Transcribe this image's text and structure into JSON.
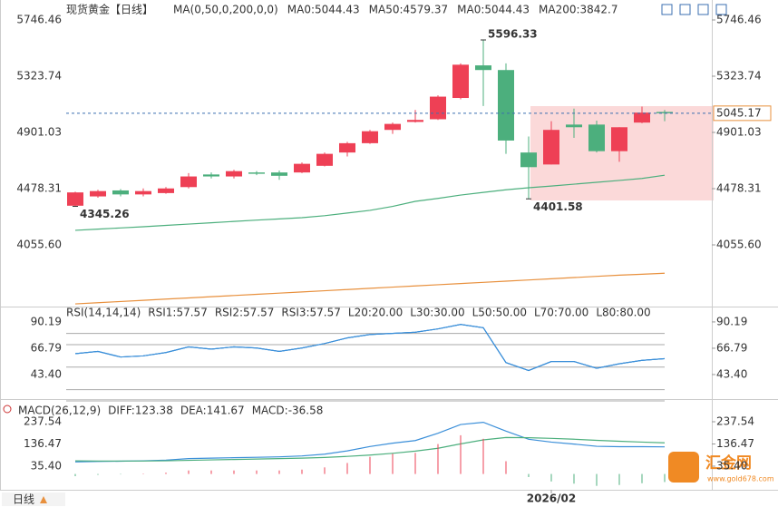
{
  "chart_data": [
    {
      "type": "candlestick",
      "title": "现货黄金",
      "period": "【日线】",
      "period_color": "#e8903d",
      "indicator": "MA(0,50,0,200,0,0)",
      "categories": [
        null,
        null,
        null,
        null,
        null,
        null,
        null,
        null,
        null,
        null,
        null,
        null,
        null,
        null,
        null,
        null,
        null,
        null,
        null,
        null,
        null,
        "2026/02",
        null,
        null,
        null,
        null,
        null
      ],
      "open": [
        4350,
        4420,
        4465,
        4435,
        4445,
        4490,
        4585,
        4570,
        4600,
        4600,
        4600,
        4650,
        4750,
        4820,
        4920,
        4980,
        5000,
        5160,
        5405,
        5370,
        4750,
        4660,
        4960,
        4960,
        4760,
        4975,
        5055
      ],
      "high": [
        4455,
        4470,
        4475,
        4480,
        4490,
        4595,
        4600,
        4620,
        4610,
        4615,
        4675,
        4750,
        4830,
        4920,
        4975,
        5070,
        5180,
        5420,
        5596.33,
        5420,
        4870,
        4985,
        5080,
        4990,
        4940,
        5095,
        5070
      ],
      "low": [
        4345.26,
        4410,
        4420,
        4420,
        4440,
        4480,
        4555,
        4555,
        4580,
        4545,
        4595,
        4645,
        4720,
        4815,
        4890,
        4975,
        4995,
        5150,
        5100,
        4740,
        4401.58,
        4660,
        4860,
        4750,
        4680,
        4970,
        4985
      ],
      "close": [
        4450,
        4460,
        4435,
        4460,
        4480,
        4570,
        4570,
        4610,
        4590,
        4575,
        4665,
        4740,
        4820,
        4910,
        4965,
        4995,
        5170,
        5410,
        5370,
        4840,
        4640,
        4920,
        4940,
        4760,
        4940,
        5050,
        5045.17
      ],
      "up_color": "#ee4055",
      "down_color": "#4caf7d",
      "series": [
        {
          "name": "MA0:5044.43",
          "color": "#3b8fd9"
        },
        {
          "name": "MA50:4579.37",
          "color": "#4caf7d",
          "values": [
            4165,
            4174,
            4183,
            4192,
            4202,
            4212,
            4222,
            4232,
            4242,
            4251,
            4260,
            4275,
            4295,
            4315,
            4345,
            4383,
            4405,
            4430,
            4450,
            4470,
            4485,
            4498,
            4512,
            4526,
            4540,
            4555,
            4579.37
          ]
        },
        {
          "name": "MA0:5044.43",
          "color": "#3b8fd9"
        },
        {
          "name": "MA200:3842.7",
          "color": "#e8903d",
          "values": [
            3612,
            3621,
            3630,
            3639,
            3648,
            3657,
            3666,
            3675,
            3684,
            3693,
            3702,
            3711,
            3720,
            3729,
            3738,
            3747,
            3756,
            3765,
            3774,
            3783,
            3792,
            3801,
            3810,
            3819,
            3828,
            3835,
            3842.7
          ]
        }
      ],
      "annotations": [
        5596.33,
        4345.26,
        4401.58
      ],
      "annotation_colors": [
        "#ee4055",
        "#4caf7d",
        "#4caf7d"
      ],
      "last": 5045.17,
      "last_color": "#e8903d",
      "ylim": [
        3592,
        5876
      ],
      "yticks": [
        5746.46,
        5323.74,
        4901.03,
        4478.31,
        {
          "value": 4055.6,
          "label": "4055.60"
        }
      ]
    },
    {
      "type": "line",
      "title": "RSI(14,14,14)",
      "series": [
        {
          "name": "RSI1:57.57",
          "color": "#3b8fd9",
          "values": [
            62,
            64,
            59,
            60,
            63,
            68,
            66,
            68,
            67,
            64,
            67,
            71,
            76,
            79,
            80,
            81,
            84,
            88,
            85,
            54,
            47,
            55,
            55,
            49,
            53,
            56,
            57.57
          ]
        },
        {
          "name": "RSI2:57.57",
          "color": "#3b8fd9",
          "values": [
            62,
            64,
            59,
            60,
            63,
            68,
            66,
            68,
            67,
            64,
            67,
            71,
            76,
            79,
            80,
            81,
            84,
            88,
            85,
            54,
            47,
            55,
            55,
            49,
            53,
            56,
            57.57
          ]
        },
        {
          "name": "RSI3:57.57",
          "color": "#3b8fd9",
          "values": [
            62,
            64,
            59,
            60,
            63,
            68,
            66,
            68,
            67,
            64,
            67,
            71,
            76,
            79,
            80,
            81,
            84,
            88,
            85,
            54,
            47,
            55,
            55,
            49,
            53,
            56,
            57.57
          ]
        }
      ],
      "levels": [
        {
          "name": "L20:20.00",
          "value": 20
        },
        {
          "name": "L30:30.00",
          "value": 30
        },
        {
          "name": "L50:50.00",
          "value": 50
        },
        {
          "name": "L70:70.00",
          "value": 70
        },
        {
          "name": "L80:80.00",
          "value": 80
        }
      ],
      "level_color": "#aaaaaa",
      "ylim": [
        21.6,
        98.2
      ],
      "yticks": [
        90.19,
        66.79,
        {
          "value": 43.4,
          "label": "43.40"
        }
      ]
    },
    {
      "type": "macd",
      "title": "MACD(26,12,9)",
      "series": [
        {
          "name": "DIFF:123.38",
          "color": "#3b8fd9",
          "values": [
            55,
            57,
            58,
            60,
            63,
            70,
            72,
            74,
            76,
            78,
            82,
            90,
            105,
            125,
            140,
            152,
            185,
            225,
            235,
            195,
            158,
            145,
            136,
            126,
            124,
            124,
            123.38
          ]
        },
        {
          "name": "DEA:141.67",
          "color": "#4caf7d",
          "values": [
            60,
            59,
            59,
            59,
            60,
            62,
            64,
            66,
            68,
            70,
            72,
            75,
            80,
            86,
            94,
            104,
            117,
            137,
            155,
            166,
            165,
            162,
            158,
            153,
            149,
            145,
            141.67
          ]
        },
        {
          "name": "MACD:-36.58",
          "color": "#3b8fd9",
          "style": "bar",
          "values": [
            -10,
            -4,
            -2,
            2,
            6,
            16,
            16,
            16,
            16,
            16,
            20,
            30,
            50,
            78,
            92,
            96,
            136,
            176,
            160,
            58,
            -14,
            -34,
            -44,
            -54,
            -50,
            -42,
            -36.58
          ]
        }
      ],
      "up_color": "#ee4055",
      "down_color": "#4caf7d",
      "ylim": [
        -71.8,
        278.8
      ],
      "yticks": [
        237.54,
        136.47,
        {
          "value": 35.4,
          "label": "35.40"
        }
      ]
    }
  ],
  "footer_period": "日线",
  "watermark": {
    "name": "汇金网",
    "url": "www.gold678.com"
  }
}
